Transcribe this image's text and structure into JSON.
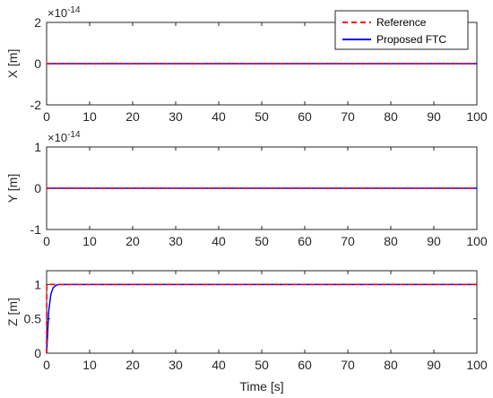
{
  "chart_data": [
    {
      "type": "line",
      "ylabel": "X [m]",
      "xlabel": "",
      "exponent_label": "×10",
      "exponent_power": "-14",
      "xlim": [
        0,
        100
      ],
      "ylim": [
        -2,
        2
      ],
      "xticks": [
        "0",
        "10",
        "20",
        "30",
        "40",
        "50",
        "60",
        "70",
        "80",
        "90",
        "100"
      ],
      "yticks": [
        "-2",
        "0",
        "2"
      ],
      "series": [
        {
          "name": "Reference",
          "color": "#ff0000",
          "style": "dashed",
          "x": [
            0,
            100
          ],
          "y": [
            0,
            0
          ]
        },
        {
          "name": "Proposed FTC",
          "color": "#0000ff",
          "style": "solid",
          "x": [
            0,
            100
          ],
          "y": [
            0,
            0
          ]
        }
      ]
    },
    {
      "type": "line",
      "ylabel": "Y [m]",
      "xlabel": "",
      "exponent_label": "×10",
      "exponent_power": "-14",
      "xlim": [
        0,
        100
      ],
      "ylim": [
        -1,
        1
      ],
      "xticks": [
        "0",
        "10",
        "20",
        "30",
        "40",
        "50",
        "60",
        "70",
        "80",
        "90",
        "100"
      ],
      "yticks": [
        "-1",
        "0",
        "1"
      ],
      "series": [
        {
          "color": "#ff0000",
          "style": "dashed",
          "x": [
            0,
            100
          ],
          "y": [
            0,
            0
          ]
        },
        {
          "color": "#0000ff",
          "style": "solid",
          "x": [
            0,
            100
          ],
          "y": [
            0,
            0
          ]
        }
      ]
    },
    {
      "type": "line",
      "ylabel": "Z [m]",
      "xlabel": "Time [s]",
      "xlim": [
        0,
        100
      ],
      "ylim": [
        0,
        1.2
      ],
      "xticks": [
        "0",
        "10",
        "20",
        "30",
        "40",
        "50",
        "60",
        "70",
        "80",
        "90",
        "100"
      ],
      "yticks": [
        "0",
        "0.5",
        "1"
      ],
      "series": [
        {
          "color": "#ff0000",
          "style": "dashed",
          "x": [
            0,
            0.05,
            100
          ],
          "y": [
            0,
            1,
            1
          ]
        },
        {
          "color": "#0000ff",
          "style": "solid",
          "x": [
            0,
            0.5,
            1,
            1.5,
            2,
            2.5,
            3,
            4,
            5,
            100
          ],
          "y": [
            0,
            0.62,
            0.86,
            0.95,
            0.98,
            0.995,
            1,
            1,
            1,
            1
          ]
        }
      ]
    }
  ],
  "legend": {
    "position": "top-right",
    "items": [
      {
        "label": "Reference",
        "color": "#ff0000",
        "style": "dashed"
      },
      {
        "label": "Proposed FTC",
        "color": "#0000ff",
        "style": "solid"
      }
    ]
  }
}
